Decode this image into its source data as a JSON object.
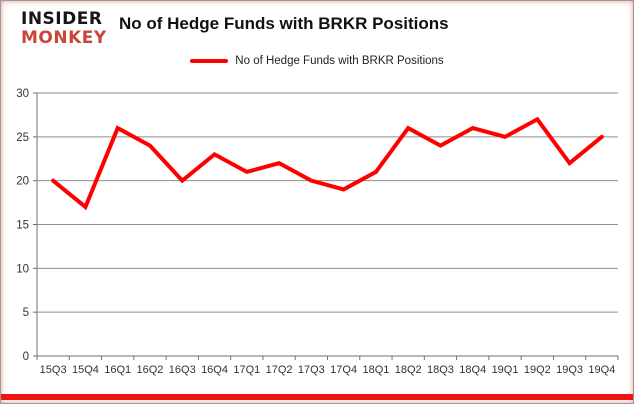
{
  "logo": {
    "line1": "INSIDER",
    "line2": "MONKEY",
    "accent_color": "#c9473a"
  },
  "header": {
    "title": "No of Hedge Funds with BRKR Positions"
  },
  "legend": {
    "label": "No of Hedge Funds with BRKR Positions",
    "swatch_color": "#ff0000"
  },
  "colors": {
    "line": "#ff0000",
    "gridline": "#8e8e8e",
    "axis": "#6f6f6f",
    "tick_text": "#333333",
    "bottom_bar": "#ee1511"
  },
  "chart_data": {
    "type": "line",
    "title": "No of Hedge Funds with BRKR Positions",
    "categories": [
      "15Q3",
      "15Q4",
      "16Q1",
      "16Q2",
      "16Q3",
      "16Q4",
      "17Q1",
      "17Q2",
      "17Q3",
      "17Q4",
      "18Q1",
      "18Q2",
      "18Q3",
      "18Q4",
      "19Q1",
      "19Q2",
      "19Q3",
      "19Q4"
    ],
    "series": [
      {
        "name": "No of Hedge Funds with BRKR Positions",
        "color": "#ff0000",
        "values": [
          20,
          17,
          26,
          24,
          20,
          23,
          21,
          22,
          20,
          19,
          21,
          26,
          24,
          26,
          25,
          27,
          22,
          25
        ]
      }
    ],
    "xlabel": "",
    "ylabel": "",
    "ylim": [
      0,
      30
    ],
    "yticks": [
      0,
      5,
      10,
      15,
      20,
      25,
      30
    ],
    "grid": true,
    "legend_position": "top-center"
  }
}
